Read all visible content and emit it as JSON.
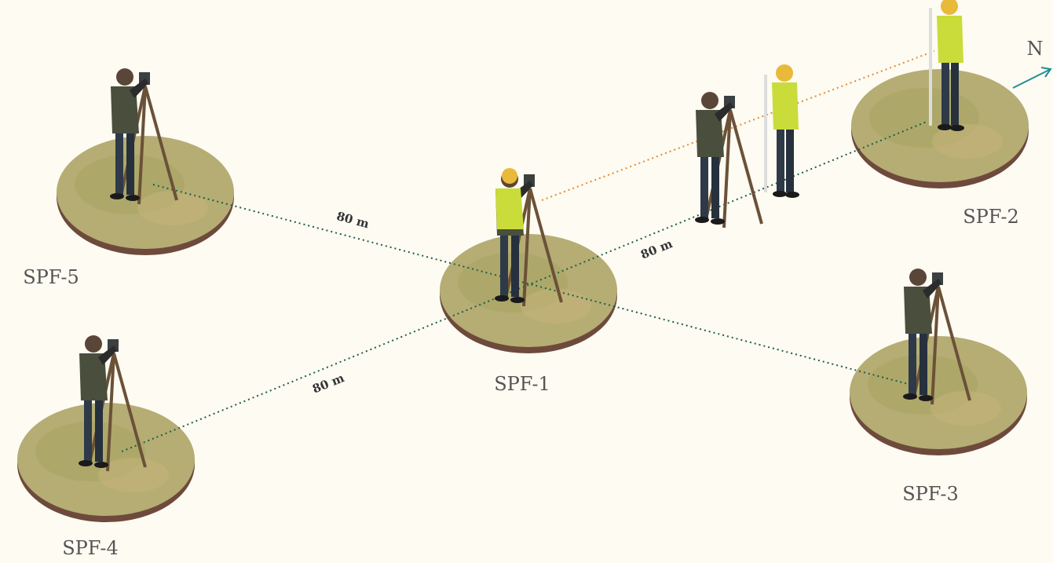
{
  "plots": [
    {
      "label": "SPF-1"
    },
    {
      "label": "SPF-2"
    },
    {
      "label": "SPF-3"
    },
    {
      "label": "SPF-4"
    },
    {
      "label": "SPF-5"
    }
  ],
  "distances": [
    {
      "label": "80 m"
    },
    {
      "label": "80 m"
    },
    {
      "label": "80 m"
    }
  ],
  "north": {
    "label": "N"
  }
}
